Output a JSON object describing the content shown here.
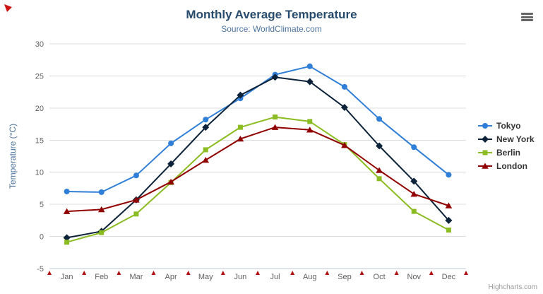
{
  "chart_data": {
    "type": "line",
    "title": "Monthly Average Temperature",
    "subtitle": "Source: WorldClimate.com",
    "categories": [
      "Jan",
      "Feb",
      "Mar",
      "Apr",
      "May",
      "Jun",
      "Jul",
      "Aug",
      "Sep",
      "Oct",
      "Nov",
      "Dec"
    ],
    "series": [
      {
        "name": "Tokyo",
        "color": "#2f7ed8",
        "marker": "circle",
        "values": [
          7.0,
          6.9,
          9.5,
          14.5,
          18.2,
          21.5,
          25.2,
          26.5,
          23.3,
          18.3,
          13.9,
          9.6
        ]
      },
      {
        "name": "New York",
        "color": "#0d233a",
        "marker": "diamond",
        "values": [
          -0.2,
          0.8,
          5.7,
          11.3,
          17.0,
          22.0,
          24.8,
          24.1,
          20.1,
          14.1,
          8.6,
          2.5
        ]
      },
      {
        "name": "Berlin",
        "color": "#8bbc21",
        "marker": "square",
        "values": [
          -0.9,
          0.6,
          3.5,
          8.4,
          13.5,
          17.0,
          18.6,
          17.9,
          14.3,
          9.0,
          3.9,
          1.0
        ]
      },
      {
        "name": "London",
        "color": "#910000",
        "marker": "triangle",
        "values": [
          3.9,
          4.2,
          5.7,
          8.5,
          11.9,
          15.2,
          17.0,
          16.6,
          14.2,
          10.3,
          6.6,
          4.8
        ]
      }
    ],
    "xlabel": "",
    "ylabel": "Temperature (°C)",
    "ylim": [
      -5,
      30
    ],
    "ytick_step": 5,
    "yticks": [
      -5,
      0,
      5,
      10,
      15,
      20,
      25,
      30
    ],
    "legend_position": "right",
    "grid": true
  },
  "credits": "Highcharts.com",
  "export_menu": {
    "icon": "hamburger-icon"
  },
  "colors": {
    "title": "#274b6d",
    "subtitle": "#4d759e",
    "axis_label": "#606060",
    "gridline": "#dcdcdc",
    "axis_line": "#c0c8d4",
    "tick_marker": "#b01111",
    "legend_text": "#333333",
    "credits_text": "#999999"
  }
}
